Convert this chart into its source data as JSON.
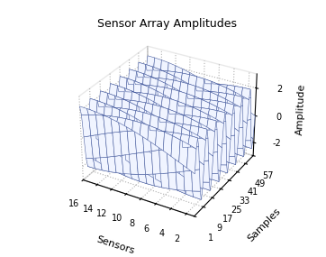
{
  "title": "Sensor Array Amplitudes",
  "xlabel": "Sensors",
  "ylabel": "Samples",
  "zlabel": "Amplitude",
  "n_sensors": 16,
  "n_samples": 57,
  "amplitude": 2.3,
  "sample_cycles": 7,
  "sensor_phase_shift": 0.5,
  "zlim": [
    -3,
    3
  ],
  "zticks": [
    -2,
    0,
    2
  ],
  "sensor_ticks": [
    2,
    4,
    6,
    8,
    10,
    12,
    14,
    16
  ],
  "sample_ticks": [
    1,
    9,
    17,
    25,
    33,
    41,
    49,
    57
  ],
  "surface_color": "#f0f4ff",
  "edge_color": "#4a5fa0",
  "title_fontsize": 9,
  "label_fontsize": 8,
  "tick_fontsize": 7,
  "elev": 30,
  "azim": -60
}
